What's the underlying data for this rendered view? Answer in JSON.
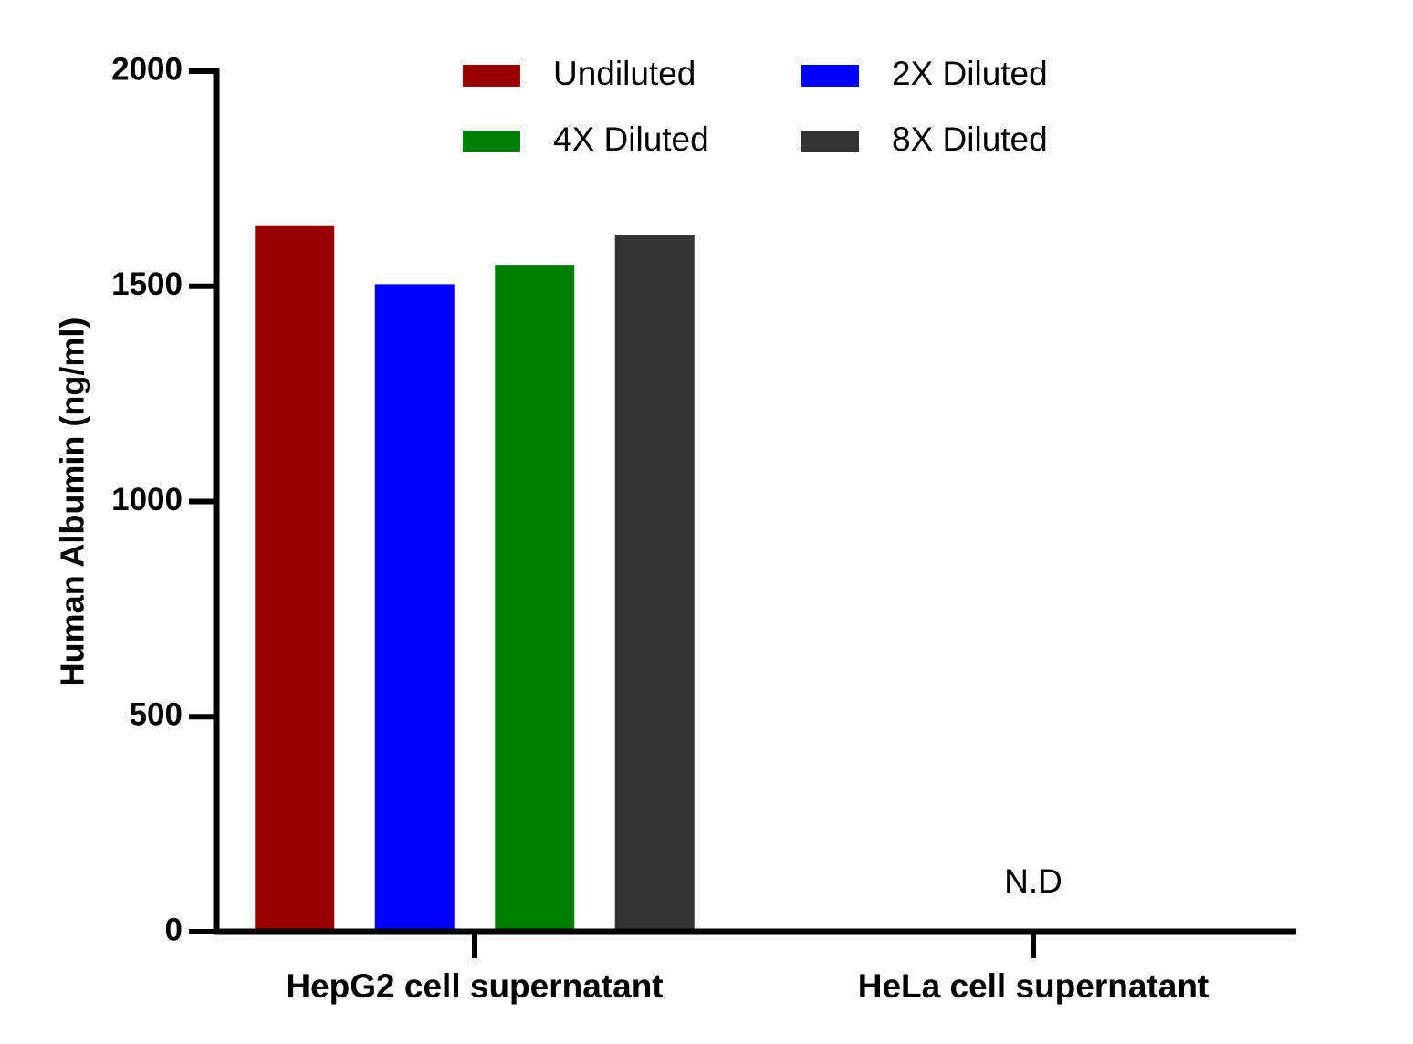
{
  "chart_data": {
    "type": "bar",
    "title": "",
    "xlabel": "",
    "ylabel": "Human Albumin (ng/ml)",
    "ylim": [
      0,
      2000
    ],
    "yticks": [
      0,
      500,
      1000,
      1500,
      2000
    ],
    "grid": false,
    "legend_position": "top",
    "categories": [
      "HepG2 cell supernatant",
      "HeLa cell supernatant"
    ],
    "series": [
      {
        "name": "Undiluted",
        "color": "#9b0000",
        "values": [
          1640,
          null
        ]
      },
      {
        "name": "2X Diluted",
        "color": "#0000ff",
        "values": [
          1505,
          null
        ]
      },
      {
        "name": "4X Diluted",
        "color": "#008000",
        "values": [
          1550,
          null
        ]
      },
      {
        "name": "8X Diluted",
        "color": "#333333",
        "values": [
          1620,
          null
        ]
      }
    ],
    "annotations": [
      {
        "text": "N.D",
        "category": "HeLa cell supernatant"
      }
    ]
  }
}
